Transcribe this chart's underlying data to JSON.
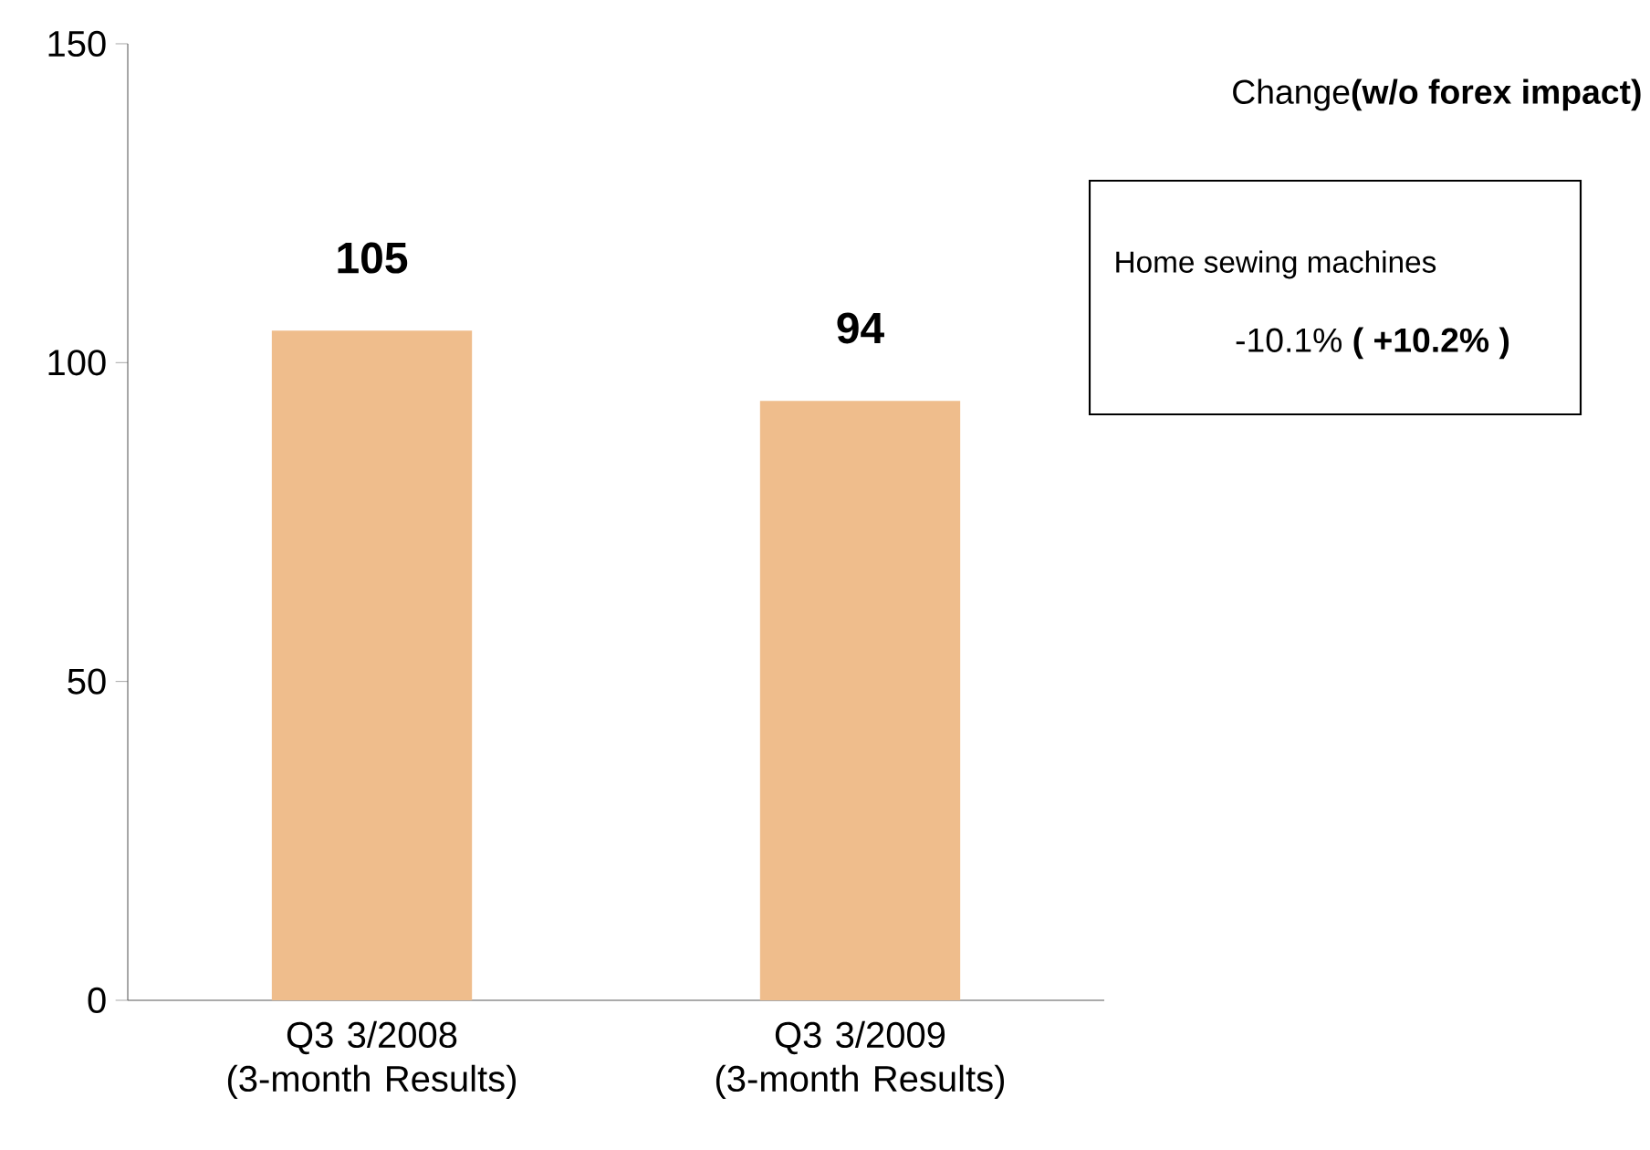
{
  "chart_data": {
    "type": "bar",
    "categories": [
      "Q3 3/2008 (3-month Results)",
      "Q3 3/2009 (3-month Results)"
    ],
    "values": [
      105,
      94
    ],
    "color": "#efbd8c",
    "ylim": [
      0,
      150
    ],
    "yticks": [
      0,
      50,
      100,
      150
    ],
    "grid": false,
    "data_labels": true,
    "annotations": [
      "Change**(w/o forex impact)**",
      "Home sewing machines",
      "-10.1% **( +10.2% )**"
    ]
  }
}
